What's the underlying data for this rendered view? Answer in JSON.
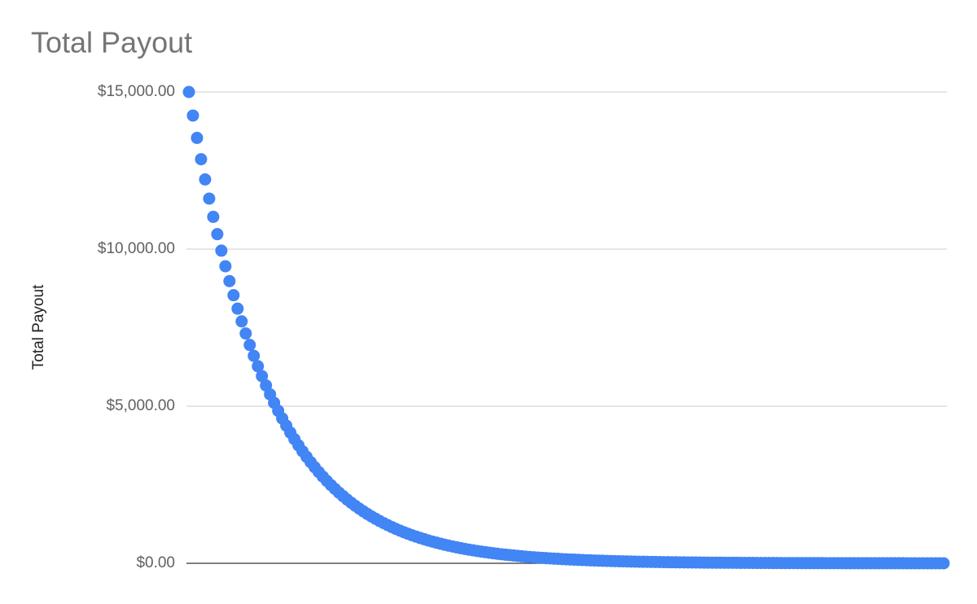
{
  "chart_data": {
    "type": "scatter",
    "title": "Total Payout",
    "y_label": "Total Payout",
    "color": "#4285f4",
    "grid": true,
    "ylim": [
      0,
      15000
    ],
    "yticks": [
      {
        "value": 0,
        "label": "$0.00"
      },
      {
        "value": 5000,
        "label": "$5,000.00"
      },
      {
        "value": 10000,
        "label": "$10,000.00"
      },
      {
        "value": 15000,
        "label": "$15,000.00"
      }
    ],
    "values": [
      15000,
      14250,
      13538,
      12860,
      12217,
      11607,
      11026,
      10475,
      9951,
      9454,
      8981,
      8532,
      8105,
      7700,
      7315,
      6949,
      6602,
      6272,
      5958,
      5660,
      5377,
      5108,
      4853,
      4610,
      4380,
      4161,
      3953,
      3755,
      3567,
      3389,
      3220,
      3059,
      2906,
      2760,
      2622,
      2491,
      2367,
      2248,
      2136,
      2029,
      1928,
      1831,
      1740,
      1653,
      1570,
      1491,
      1417,
      1346,
      1279,
      1215,
      1154,
      1096,
      1041,
      989,
      940,
      893,
      848,
      806,
      766,
      727,
      691,
      656,
      624,
      592,
      563,
      535,
      508,
      482,
      458,
      435,
      414,
      393,
      373,
      355,
      337,
      320,
      304,
      289,
      274,
      261,
      248,
      235,
      223,
      212,
      202,
      192,
      182,
      173,
      164,
      156,
      148,
      141,
      134,
      127,
      121,
      115,
      109,
      104,
      98,
      93,
      89,
      84,
      80,
      76,
      72,
      69,
      65,
      62,
      59,
      56,
      53,
      50,
      48,
      46,
      43,
      41,
      39,
      37,
      35,
      34,
      32,
      30,
      29,
      27,
      26,
      25,
      24,
      22,
      21,
      20,
      19,
      18,
      17,
      16,
      16,
      15,
      14,
      13,
      13,
      12,
      11,
      11,
      10,
      10,
      9,
      9,
      8,
      8,
      7,
      7,
      7,
      6,
      6,
      6,
      5,
      5,
      5,
      4,
      4,
      4,
      4,
      4,
      3,
      3,
      3,
      3,
      3,
      3,
      2,
      2,
      2,
      2,
      2,
      2,
      2,
      2,
      2,
      1,
      1,
      1,
      1,
      1,
      1,
      1,
      1,
      1,
      1
    ]
  }
}
